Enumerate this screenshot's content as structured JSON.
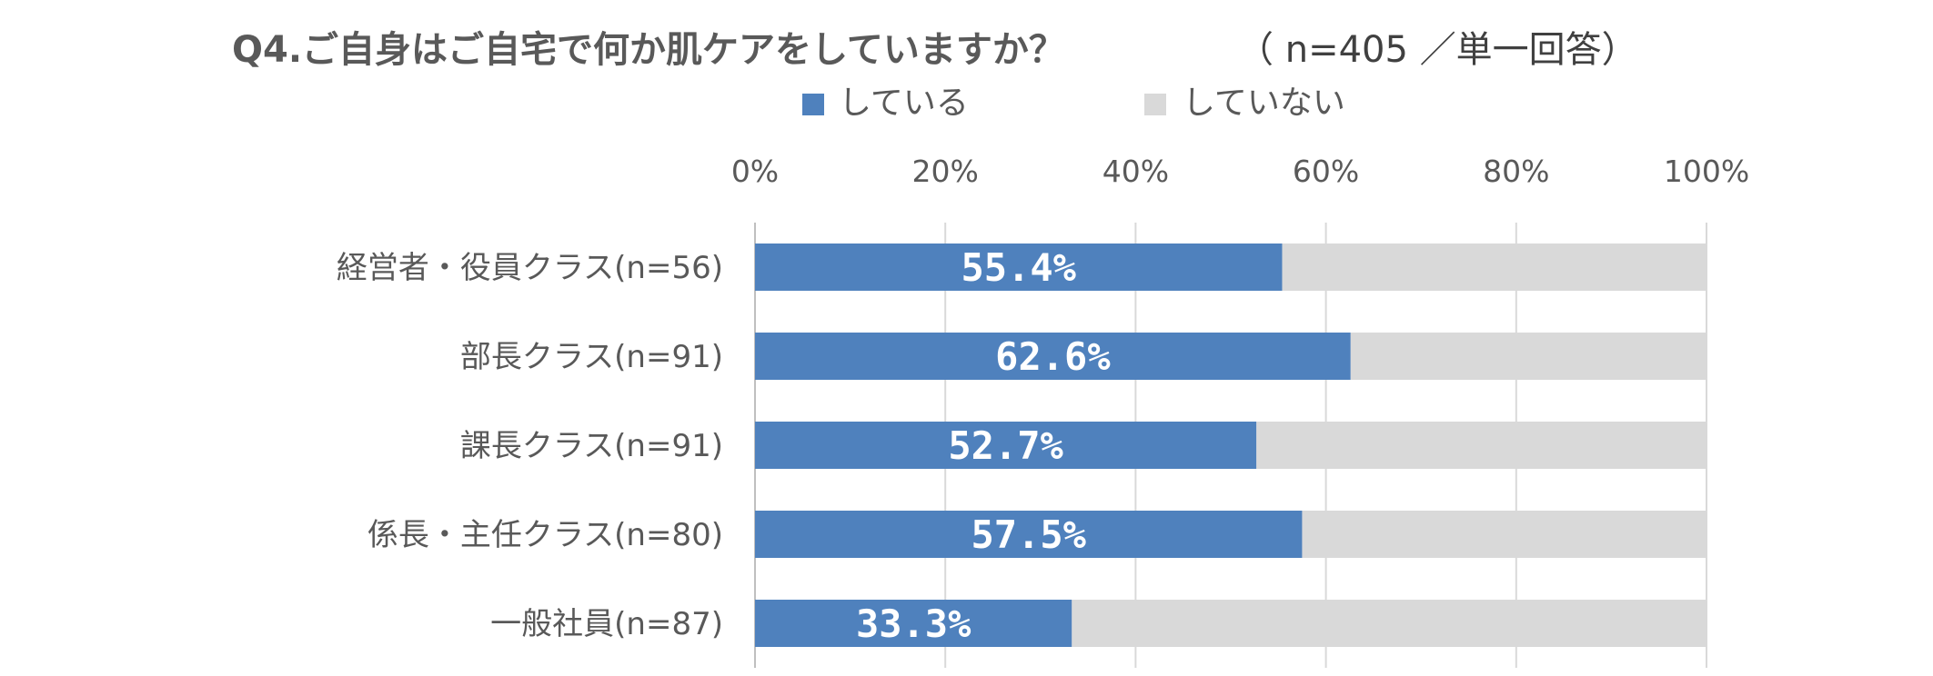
{
  "colors": {
    "doing": "#4F81BD",
    "not_doing": "#D9D9D9",
    "grid": "#D9D9D9",
    "axis_line": "#BFBFBF"
  },
  "chart_data": {
    "type": "bar",
    "orientation": "horizontal",
    "stacked": true,
    "percent_stacked": true,
    "title": "Q4.ご自身はご自宅で何か肌ケアをしていますか？",
    "subtitle": "（ n=405 ／単一回答）",
    "categories": [
      "経営者・役員クラス(n=56)",
      "部長クラス(n=91)",
      "課長クラス(n=91)",
      "係長・主任クラス(n=80)",
      "一般社員(n=87)"
    ],
    "series": [
      {
        "name": "している",
        "values": [
          55.4,
          62.6,
          52.7,
          57.5,
          33.3
        ],
        "labels": [
          "55.4%",
          "62.6%",
          "52.7%",
          "57.5%",
          "33.3%"
        ]
      },
      {
        "name": "していない",
        "values": [
          44.6,
          37.4,
          47.3,
          42.5,
          66.7
        ]
      }
    ],
    "x_ticks": [
      "0%",
      "20%",
      "40%",
      "60%",
      "80%",
      "100%"
    ],
    "xlim": [
      0,
      100
    ],
    "grid": true,
    "legend_position": "top",
    "axis_position": "top"
  }
}
